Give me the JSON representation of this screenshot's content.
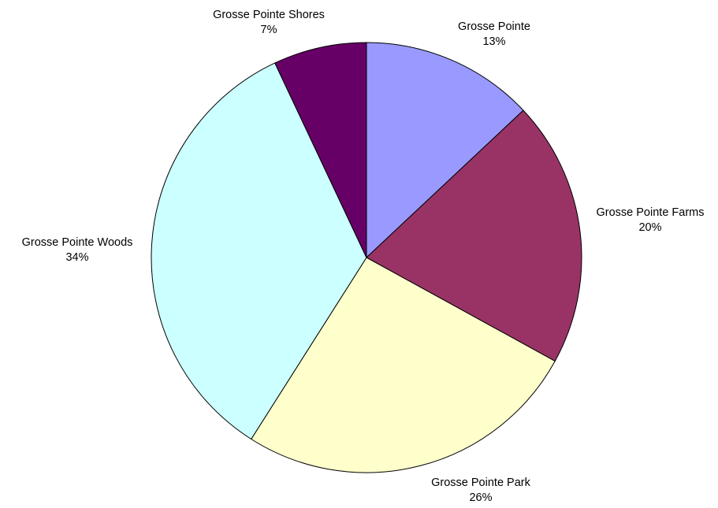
{
  "chart_data": {
    "type": "pie",
    "start_angle_deg": 0,
    "direction": "clockwise",
    "slices": [
      {
        "label": "Grosse Pointe",
        "value": 13,
        "display": "13%",
        "color": "#9999ff"
      },
      {
        "label": "Grosse Pointe Farms",
        "value": 20,
        "display": "20%",
        "color": "#993366"
      },
      {
        "label": "Grosse Pointe Park",
        "value": 26,
        "display": "26%",
        "color": "#ffffcc"
      },
      {
        "label": "Grosse Pointe Woods",
        "value": 34,
        "display": "34%",
        "color": "#ccffff"
      },
      {
        "label": "Grosse Pointe Shores",
        "value": 7,
        "display": "7%",
        "color": "#660066"
      }
    ],
    "legend": "none"
  }
}
